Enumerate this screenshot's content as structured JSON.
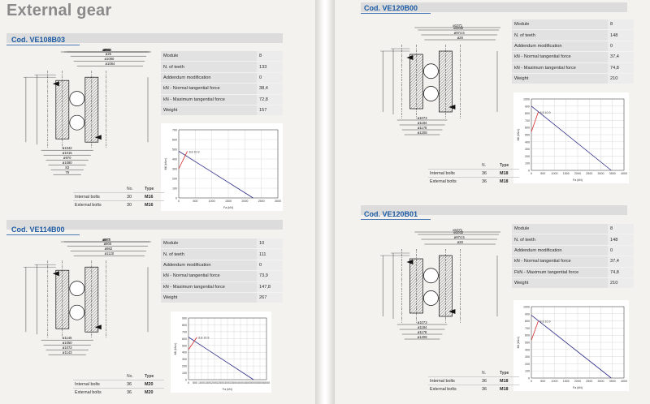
{
  "page_title": "External gear",
  "products": [
    {
      "code": "Cod. VE108B03",
      "specs": [
        {
          "label": "Module",
          "value": "8"
        },
        {
          "label": "N. of teeth",
          "value": "133"
        },
        {
          "label": "Addendum modification",
          "value": "0"
        },
        {
          "label": "kN - Normal tangential force",
          "value": "38,4"
        },
        {
          "label": "kN - Maximum tangential force",
          "value": "72,8"
        },
        {
          "label": "Weight",
          "value": "157"
        }
      ],
      "bolts": {
        "col_no": "No.",
        "col_type": "Type",
        "rows": [
          {
            "label": "Internal bolts",
            "no": "30",
            "type": "M16"
          },
          {
            "label": "External bolts",
            "no": "30",
            "type": "M16"
          }
        ]
      },
      "dims": [
        "ø966",
        "ø922",
        "ø893",
        "ø25",
        "ø1080",
        "ø1064",
        "ø1042",
        "ø1015",
        "ø970",
        "ø1080",
        "83",
        "79"
      ]
    },
    {
      "code": "Cod. VE114B00",
      "specs": [
        {
          "label": "Module",
          "value": "10"
        },
        {
          "label": "N. of teeth",
          "value": "111"
        },
        {
          "label": "Addendum modification",
          "value": "0"
        },
        {
          "label": "kN - Normal tangential force",
          "value": "73,9"
        },
        {
          "label": "kN - Maximum tangential force",
          "value": "147,8"
        },
        {
          "label": "Weight",
          "value": "267"
        }
      ],
      "bolts": {
        "col_no": "No.",
        "col_type": "Type",
        "rows": [
          {
            "label": "Internal bolts",
            "no": "36",
            "type": "M20"
          },
          {
            "label": "External bolts",
            "no": "36",
            "type": "M20"
          }
        ]
      },
      "dims": [
        "ø977",
        "ø970",
        "ø900",
        "ø982",
        "ø1120",
        "ø1146",
        "ø1050",
        "ø1072",
        "ø1143"
      ]
    },
    {
      "code": "Cod. VE120B00",
      "specs": [
        {
          "label": "Module",
          "value": "8"
        },
        {
          "label": "N. of teeth",
          "value": "148"
        },
        {
          "label": "Addendum modification",
          "value": "0"
        },
        {
          "label": "kN - Normal tangential force",
          "value": "37,4"
        },
        {
          "label": "kN - Maximum tangential force",
          "value": "74,8"
        },
        {
          "label": "Weight",
          "value": "210"
        }
      ],
      "bolts": {
        "col_no": "N.",
        "col_type": "Type",
        "rows": [
          {
            "label": "Internal bolts",
            "no": "36",
            "type": "M18"
          },
          {
            "label": "External bolts",
            "no": "36",
            "type": "M18"
          }
        ]
      },
      "dims": [
        "ø1071",
        "ø1032",
        "ø974.5",
        "ø28",
        "ø1073",
        "ø1184",
        "ø1178",
        "ø1208"
      ]
    },
    {
      "code": "Cod. VE120B01",
      "specs": [
        {
          "label": "Module",
          "value": "8"
        },
        {
          "label": "N. of teeth",
          "value": "148"
        },
        {
          "label": "Addendum modification",
          "value": "0"
        },
        {
          "label": "kN - Normal tangential force",
          "value": "37,4"
        },
        {
          "label": "FkN - Maximum tangential force",
          "value": "74,8"
        },
        {
          "label": "Weight",
          "value": "210"
        }
      ],
      "bolts": {
        "col_no": "N.",
        "col_type": "Type",
        "rows": [
          {
            "label": "Internal bolts",
            "no": "36",
            "type": "M18"
          },
          {
            "label": "External bolts",
            "no": "36",
            "type": "M18"
          }
        ]
      },
      "dims": [
        "ø1071",
        "ø1032",
        "ø974.5",
        "ø28",
        "ø1073",
        "ø1184",
        "ø1178",
        "ø1208"
      ]
    }
  ],
  "chart_data": [
    {
      "type": "line",
      "product": "Cod. VE108B03",
      "xlabel": "Fa (kN)",
      "ylabel": "Mt (kNm)",
      "xlim": [
        0,
        3000
      ],
      "ylim": [
        0,
        700
      ],
      "xticks": [
        "0",
        "500",
        "1000",
        "1500",
        "2000",
        "2500",
        "3000"
      ],
      "yticks": [
        "0",
        "100",
        "200",
        "300",
        "400",
        "500",
        "600",
        "700"
      ],
      "series": [
        {
          "color": "#2b2b88",
          "x": [
            0,
            2250
          ],
          "y": [
            480,
            0
          ]
        },
        {
          "color": "#d42a2a",
          "x": [
            0,
            260
          ],
          "y": [
            300,
            480
          ]
        }
      ],
      "annotations": [
        "8.8",
        "10.9"
      ]
    },
    {
      "type": "line",
      "product": "Cod. VE114B00",
      "xlabel": "Fa (kN)",
      "ylabel": "Mt (kNm)",
      "xlim": [
        0,
        6000
      ],
      "ylim": [
        0,
        900
      ],
      "xticks": [
        "0",
        "500",
        "1000",
        "1500",
        "2000",
        "2500",
        "3000",
        "3500",
        "4000",
        "4500",
        "5000",
        "5500",
        "6000"
      ],
      "yticks": [
        "0",
        "100",
        "200",
        "300",
        "400",
        "500",
        "600",
        "700",
        "800",
        "900"
      ],
      "series": [
        {
          "color": "#2b2b88",
          "x": [
            0,
            5000
          ],
          "y": [
            620,
            0
          ]
        },
        {
          "color": "#d42a2a",
          "x": [
            0,
            650
          ],
          "y": [
            440,
            620
          ]
        }
      ],
      "annotations": [
        "8.8",
        "10.9"
      ]
    },
    {
      "type": "line",
      "product": "Cod. VE120B00",
      "xlabel": "Fa (kN)",
      "ylabel": "Mt (kNm)",
      "xlim": [
        0,
        4000
      ],
      "ylim": [
        0,
        1000
      ],
      "xticks": [
        "0",
        "500",
        "1000",
        "1500",
        "2000",
        "2500",
        "3000",
        "3500",
        "4000"
      ],
      "yticks": [
        "0",
        "100",
        "200",
        "300",
        "400",
        "500",
        "600",
        "700",
        "800",
        "900",
        "1000"
      ],
      "series": [
        {
          "color": "#2b2b88",
          "x": [
            0,
            3450
          ],
          "y": [
            900,
            0
          ]
        },
        {
          "color": "#d42a2a",
          "x": [
            0,
            300
          ],
          "y": [
            540,
            820
          ]
        }
      ],
      "annotations": [
        "8.8",
        "10.9"
      ]
    },
    {
      "type": "line",
      "product": "Cod. VE120B01",
      "xlabel": "Fa (kN)",
      "ylabel": "Mt (kNm)",
      "xlim": [
        0,
        4000
      ],
      "ylim": [
        0,
        1000
      ],
      "xticks": [
        "0",
        "500",
        "1000",
        "1500",
        "2000",
        "2500",
        "3000",
        "3500",
        "4000"
      ],
      "yticks": [
        "0",
        "100",
        "200",
        "300",
        "400",
        "500",
        "600",
        "700",
        "800",
        "900",
        "1000"
      ],
      "series": [
        {
          "color": "#2b2b88",
          "x": [
            0,
            3450
          ],
          "y": [
            880,
            0
          ]
        },
        {
          "color": "#d42a2a",
          "x": [
            0,
            300
          ],
          "y": [
            530,
            800
          ]
        }
      ],
      "annotations": [
        "8.8",
        "10.9"
      ]
    }
  ]
}
